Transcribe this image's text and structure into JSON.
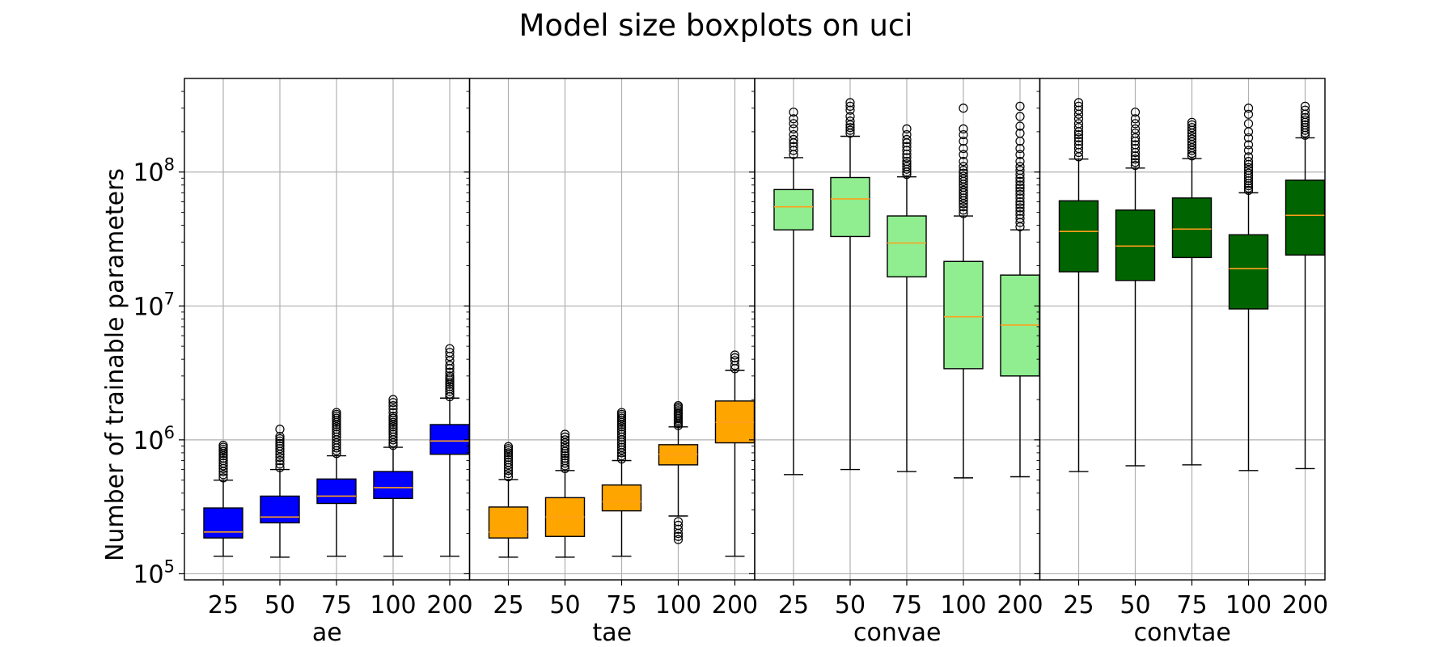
{
  "chart_data": {
    "type": "boxplot",
    "title": "Model size boxplots on uci",
    "ylabel": "Number of trainable parameters",
    "yscale": "log",
    "ylim": [
      90000,
      500000000
    ],
    "yticks": [
      {
        "value": 100000,
        "base": "10",
        "exp": "5"
      },
      {
        "value": 1000000,
        "base": "10",
        "exp": "6"
      },
      {
        "value": 10000000,
        "base": "10",
        "exp": "7"
      },
      {
        "value": 100000000,
        "base": "10",
        "exp": "8"
      }
    ],
    "grid": true,
    "panels": [
      {
        "name": "ae",
        "color": "#0000ff",
        "categories": [
          "25",
          "50",
          "75",
          "100",
          "200"
        ],
        "boxes": [
          {
            "whislo": 135000,
            "q1": 185000,
            "med": 205000,
            "q3": 310000,
            "whishi": 500000,
            "fliers": [
              520000,
              550000,
              580000,
              610000,
              640000,
              670000,
              700000,
              730000,
              760000,
              790000,
              820000,
              850000,
              880000,
              910000
            ]
          },
          {
            "whislo": 133000,
            "q1": 240000,
            "med": 265000,
            "q3": 380000,
            "whishi": 600000,
            "fliers": [
              620000,
              660000,
              700000,
              740000,
              780000,
              820000,
              860000,
              900000,
              940000,
              980000,
              1020000,
              1060000,
              1200000
            ]
          },
          {
            "whislo": 135000,
            "q1": 335000,
            "med": 380000,
            "q3": 510000,
            "whishi": 760000,
            "fliers": [
              790000,
              830000,
              870000,
              910000,
              950000,
              1000000,
              1050000,
              1100000,
              1150000,
              1200000,
              1250000,
              1300000,
              1350000,
              1400000,
              1450000,
              1500000,
              1550000,
              1600000
            ]
          },
          {
            "whislo": 135000,
            "q1": 365000,
            "med": 440000,
            "q3": 580000,
            "whishi": 880000,
            "fliers": [
              910000,
              950000,
              1000000,
              1050000,
              1100000,
              1150000,
              1200000,
              1250000,
              1300000,
              1350000,
              1400000,
              1450000,
              1500000,
              1600000,
              1700000,
              1800000,
              1900000,
              2000000
            ]
          },
          {
            "whislo": 135000,
            "q1": 780000,
            "med": 980000,
            "q3": 1300000,
            "whishi": 2050000,
            "fliers": [
              2100000,
              2200000,
              2300000,
              2400000,
              2500000,
              2600000,
              2700000,
              2800000,
              2900000,
              3000000,
              3200000,
              3400000,
              3600000,
              3900000,
              4200000,
              4500000,
              4800000
            ]
          }
        ]
      },
      {
        "name": "tae",
        "color": "#ffa500",
        "categories": [
          "25",
          "50",
          "75",
          "100",
          "200"
        ],
        "boxes": [
          {
            "whislo": 133000,
            "q1": 185000,
            "med": 205000,
            "q3": 315000,
            "whishi": 505000,
            "fliers": [
              530000,
              560000,
              590000,
              620000,
              650000,
              680000,
              710000,
              740000,
              770000,
              800000,
              830000,
              860000,
              890000
            ]
          },
          {
            "whislo": 133000,
            "q1": 190000,
            "med": 265000,
            "q3": 370000,
            "whishi": 590000,
            "fliers": [
              610000,
              640000,
              670000,
              700000,
              730000,
              760000,
              790000,
              820000,
              860000,
              900000,
              950000,
              1000000,
              1050000,
              1100000
            ]
          },
          {
            "whislo": 135000,
            "q1": 295000,
            "med": 345000,
            "q3": 460000,
            "whishi": 700000,
            "fliers": [
              720000,
              760000,
              800000,
              840000,
              880000,
              920000,
              960000,
              1000000,
              1050000,
              1100000,
              1150000,
              1200000,
              1250000,
              1300000,
              1350000,
              1400000,
              1450000,
              1500000,
              1550000,
              1600000
            ]
          },
          {
            "whislo": 270000,
            "q1": 650000,
            "med": 780000,
            "q3": 920000,
            "whishi": 1250000,
            "fliers": [
              180000,
              190000,
              200000,
              215000,
              230000,
              245000,
              1280000,
              1320000,
              1360000,
              1400000,
              1440000,
              1480000,
              1520000,
              1560000,
              1600000,
              1650000,
              1700000,
              1750000,
              1800000
            ]
          },
          {
            "whislo": 135000,
            "q1": 950000,
            "med": 1350000,
            "q3": 1950000,
            "whishi": 3300000,
            "fliers": [
              3400000,
              3600000,
              3900000,
              4100000,
              4300000
            ]
          }
        ]
      },
      {
        "name": "convae",
        "color": "#90ee90",
        "categories": [
          "25",
          "50",
          "75",
          "100",
          "200"
        ],
        "boxes": [
          {
            "whislo": 550000,
            "q1": 37000000,
            "med": 55000000,
            "q3": 74000000,
            "whishi": 128000000,
            "fliers": [
              135000000,
              145000000,
              155000000,
              165000000,
              175000000,
              190000000,
              210000000,
              230000000,
              250000000,
              280000000
            ]
          },
          {
            "whislo": 600000,
            "q1": 33000000,
            "med": 63000000,
            "q3": 91000000,
            "whishi": 185000000,
            "fliers": [
              195000000,
              205000000,
              215000000,
              225000000,
              240000000,
              260000000,
              290000000,
              310000000,
              330000000
            ]
          },
          {
            "whislo": 580000,
            "q1": 16500000,
            "med": 29500000,
            "q3": 47000000,
            "whishi": 92000000,
            "fliers": [
              96000000,
              100000000,
              105000000,
              110000000,
              115000000,
              120000000,
              128000000,
              136000000,
              145000000,
              155000000,
              165000000,
              175000000,
              190000000,
              210000000
            ]
          },
          {
            "whislo": 520000,
            "q1": 3400000,
            "med": 8300000,
            "q3": 21500000,
            "whishi": 47000000,
            "fliers": [
              49000000,
              52000000,
              55000000,
              58000000,
              61000000,
              64000000,
              67000000,
              70000000,
              73000000,
              77000000,
              81000000,
              85000000,
              89000000,
              93000000,
              98000000,
              103000000,
              110000000,
              120000000,
              135000000,
              150000000,
              170000000,
              190000000,
              210000000,
              300000000
            ]
          },
          {
            "whislo": 530000,
            "q1": 3000000,
            "med": 7200000,
            "q3": 17000000,
            "whishi": 37000000,
            "fliers": [
              39000000,
              42000000,
              45000000,
              48000000,
              51000000,
              54000000,
              57000000,
              60000000,
              64000000,
              68000000,
              72000000,
              76000000,
              80000000,
              85000000,
              90000000,
              96000000,
              103000000,
              110000000,
              120000000,
              135000000,
              150000000,
              170000000,
              195000000,
              220000000,
              260000000,
              310000000
            ]
          }
        ]
      },
      {
        "name": "convtae",
        "color": "#006400",
        "categories": [
          "25",
          "50",
          "75",
          "100",
          "200"
        ],
        "boxes": [
          {
            "whislo": 580000,
            "q1": 18000000,
            "med": 36000000,
            "q3": 61000000,
            "whishi": 125000000,
            "fliers": [
              130000000,
              140000000,
              150000000,
              160000000,
              170000000,
              180000000,
              190000000,
              200000000,
              215000000,
              230000000,
              250000000,
              270000000,
              290000000,
              310000000,
              330000000
            ]
          },
          {
            "whislo": 640000,
            "q1": 15500000,
            "med": 28000000,
            "q3": 52000000,
            "whishi": 107000000,
            "fliers": [
              112000000,
              118000000,
              125000000,
              132000000,
              140000000,
              150000000,
              160000000,
              170000000,
              180000000,
              195000000,
              210000000,
              230000000,
              250000000,
              280000000
            ]
          },
          {
            "whislo": 650000,
            "q1": 23000000,
            "med": 37500000,
            "q3": 64000000,
            "whishi": 126000000,
            "fliers": [
              132000000,
              138000000,
              145000000,
              152000000,
              160000000,
              168000000,
              176000000,
              185000000,
              195000000,
              205000000,
              215000000,
              225000000,
              235000000
            ]
          },
          {
            "whislo": 590000,
            "q1": 9500000,
            "med": 19000000,
            "q3": 34000000,
            "whishi": 70000000,
            "fliers": [
              73000000,
              76000000,
              79000000,
              82000000,
              86000000,
              90000000,
              94000000,
              98000000,
              103000000,
              108000000,
              114000000,
              120000000,
              130000000,
              145000000,
              160000000,
              180000000,
              200000000,
              230000000,
              270000000,
              300000000
            ]
          },
          {
            "whislo": 610000,
            "q1": 24000000,
            "med": 47500000,
            "q3": 87000000,
            "whishi": 180000000,
            "fliers": [
              188000000,
              196000000,
              205000000,
              215000000,
              225000000,
              235000000,
              245000000,
              255000000,
              270000000,
              290000000,
              310000000
            ]
          }
        ]
      }
    ]
  }
}
